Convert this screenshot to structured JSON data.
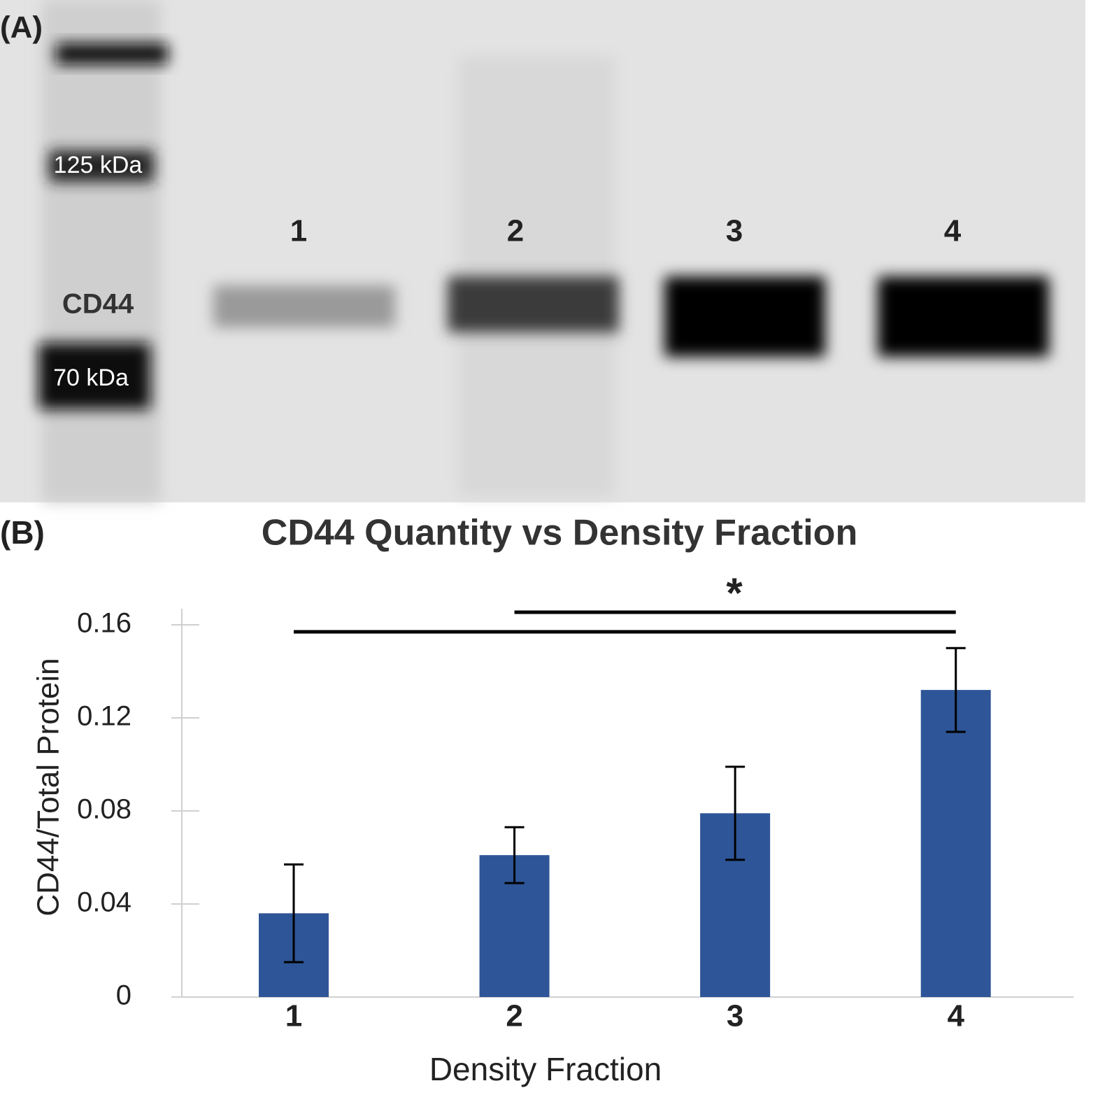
{
  "panel_a": {
    "label": "(A)",
    "markers": [
      "125 kDa",
      "70 kDa"
    ],
    "band_label": "CD44",
    "lanes": [
      "1",
      "2",
      "3",
      "4"
    ]
  },
  "chart_data": {
    "type": "bar",
    "panel_label": "(B)",
    "title": "CD44 Quantity vs Density Fraction",
    "x_label": "Density Fraction",
    "y_label": "CD44/Total Protein",
    "categories": [
      "1",
      "2",
      "3",
      "4"
    ],
    "values": [
      0.036,
      0.061,
      0.079,
      0.132
    ],
    "errors": [
      0.021,
      0.012,
      0.02,
      0.018
    ],
    "color": "#2e5597",
    "ylim": [
      0,
      0.16
    ],
    "yticks": [
      0,
      0.04,
      0.08,
      0.12,
      0.16
    ],
    "significance": {
      "label": "*",
      "pairs": [
        [
          "1",
          "4"
        ],
        [
          "2",
          "4"
        ]
      ]
    }
  }
}
